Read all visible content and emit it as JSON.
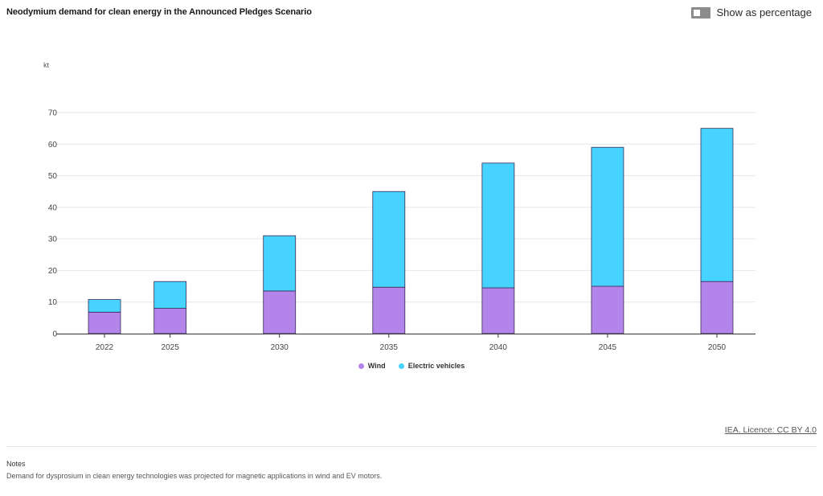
{
  "header": {
    "title": "Neodymium demand for clean energy in the Announced Pledges Scenario",
    "toggle_label": "Show as percentage",
    "toggle_on": false
  },
  "chart_data": {
    "type": "bar",
    "stacked": true,
    "unit": "kt",
    "categories": [
      "2022",
      "2025",
      "2030",
      "2035",
      "2040",
      "2045",
      "2050"
    ],
    "series": [
      {
        "name": "Wind",
        "color": "#b384ea",
        "values": [
          6.8,
          8.0,
          13.5,
          14.7,
          14.5,
          15.0,
          16.5
        ]
      },
      {
        "name": "Electric vehicles",
        "color": "#47d3ff",
        "values": [
          4.0,
          8.5,
          17.5,
          30.3,
          39.5,
          44.0,
          48.5
        ]
      }
    ],
    "ylim": [
      0,
      70
    ],
    "yticks": [
      0,
      10,
      20,
      30,
      40,
      50,
      60,
      70
    ],
    "grid": true,
    "legend_position": "bottom-center"
  },
  "footer": {
    "credit": "IEA. Licence: CC BY 4.0",
    "notes_title": "Notes",
    "notes_text": "Demand for dysprosium in clean energy technologies was projected for magnetic applications in wind and EV motors."
  }
}
